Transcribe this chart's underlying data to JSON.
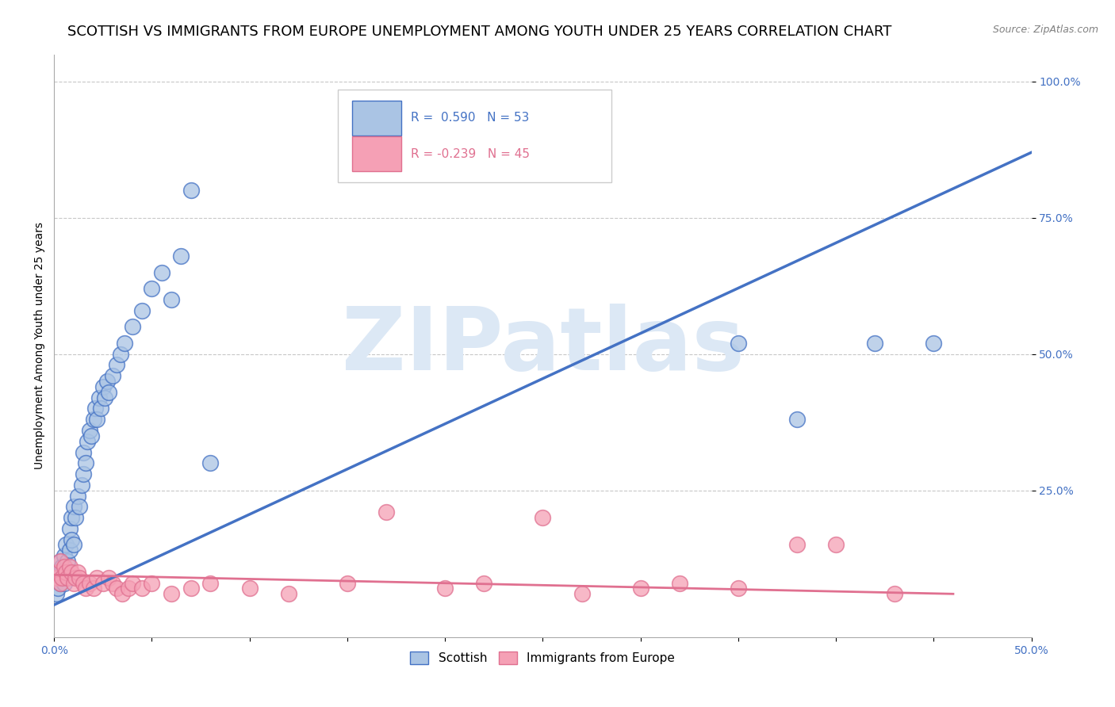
{
  "title": "SCOTTISH VS IMMIGRANTS FROM EUROPE UNEMPLOYMENT AMONG YOUTH UNDER 25 YEARS CORRELATION CHART",
  "source": "Source: ZipAtlas.com",
  "ylabel": "Unemployment Among Youth under 25 years",
  "xlim": [
    0.0,
    0.5
  ],
  "ylim": [
    -0.02,
    1.05
  ],
  "xticks": [
    0.0,
    0.05,
    0.1,
    0.15,
    0.2,
    0.25,
    0.3,
    0.35,
    0.4,
    0.45,
    0.5
  ],
  "ytick_positions": [
    0.25,
    0.5,
    0.75,
    1.0
  ],
  "ytick_labels": [
    "25.0%",
    "50.0%",
    "75.0%",
    "100.0%"
  ],
  "legend_r_scottish": "0.590",
  "legend_n_scottish": "53",
  "legend_r_immigrants": "-0.239",
  "legend_n_immigrants": "45",
  "scatter_blue_color": "#aac4e4",
  "scatter_pink_color": "#f5a0b5",
  "line_blue_color": "#4472c4",
  "line_pink_color": "#e07090",
  "tick_color": "#4472c4",
  "watermark_color": "#dce8f5",
  "background_color": "#ffffff",
  "grid_color": "#c8c8c8",
  "title_fontsize": 13,
  "axis_label_fontsize": 10,
  "tick_fontsize": 10,
  "legend_fontsize": 11,
  "blue_scatter_x": [
    0.001,
    0.002,
    0.002,
    0.003,
    0.003,
    0.004,
    0.004,
    0.005,
    0.005,
    0.006,
    0.006,
    0.007,
    0.008,
    0.008,
    0.009,
    0.009,
    0.01,
    0.01,
    0.011,
    0.012,
    0.013,
    0.014,
    0.015,
    0.015,
    0.016,
    0.017,
    0.018,
    0.019,
    0.02,
    0.021,
    0.022,
    0.023,
    0.024,
    0.025,
    0.026,
    0.027,
    0.028,
    0.03,
    0.032,
    0.034,
    0.036,
    0.04,
    0.045,
    0.05,
    0.055,
    0.06,
    0.065,
    0.07,
    0.08,
    0.35,
    0.38,
    0.42,
    0.45
  ],
  "blue_scatter_y": [
    0.06,
    0.07,
    0.1,
    0.08,
    0.12,
    0.09,
    0.11,
    0.08,
    0.13,
    0.1,
    0.15,
    0.12,
    0.14,
    0.18,
    0.16,
    0.2,
    0.15,
    0.22,
    0.2,
    0.24,
    0.22,
    0.26,
    0.28,
    0.32,
    0.3,
    0.34,
    0.36,
    0.35,
    0.38,
    0.4,
    0.38,
    0.42,
    0.4,
    0.44,
    0.42,
    0.45,
    0.43,
    0.46,
    0.48,
    0.5,
    0.52,
    0.55,
    0.58,
    0.62,
    0.65,
    0.6,
    0.68,
    0.8,
    0.3,
    0.52,
    0.38,
    0.52,
    0.52
  ],
  "pink_scatter_x": [
    0.001,
    0.002,
    0.003,
    0.003,
    0.004,
    0.005,
    0.006,
    0.007,
    0.008,
    0.009,
    0.01,
    0.011,
    0.012,
    0.013,
    0.015,
    0.016,
    0.018,
    0.02,
    0.022,
    0.025,
    0.028,
    0.03,
    0.032,
    0.035,
    0.038,
    0.04,
    0.045,
    0.05,
    0.06,
    0.07,
    0.08,
    0.1,
    0.12,
    0.15,
    0.17,
    0.2,
    0.22,
    0.25,
    0.27,
    0.3,
    0.32,
    0.35,
    0.38,
    0.4,
    0.43
  ],
  "pink_scatter_y": [
    0.09,
    0.1,
    0.08,
    0.12,
    0.09,
    0.11,
    0.1,
    0.09,
    0.11,
    0.1,
    0.08,
    0.09,
    0.1,
    0.09,
    0.08,
    0.07,
    0.08,
    0.07,
    0.09,
    0.08,
    0.09,
    0.08,
    0.07,
    0.06,
    0.07,
    0.08,
    0.07,
    0.08,
    0.06,
    0.07,
    0.08,
    0.07,
    0.06,
    0.08,
    0.21,
    0.07,
    0.08,
    0.2,
    0.06,
    0.07,
    0.08,
    0.07,
    0.15,
    0.15,
    0.06
  ],
  "blue_line_x": [
    0.0,
    0.5
  ],
  "blue_line_y": [
    0.04,
    0.87
  ],
  "pink_line_x": [
    0.0,
    0.46
  ],
  "pink_line_y": [
    0.095,
    0.06
  ]
}
